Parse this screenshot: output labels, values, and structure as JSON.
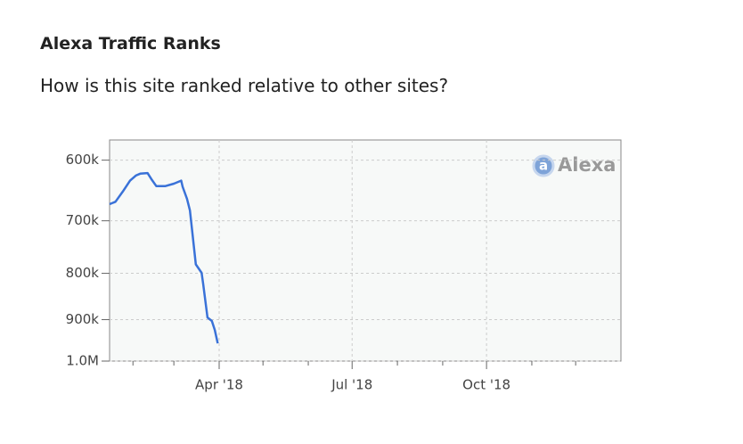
{
  "header": {
    "title": "Alexa Traffic Ranks",
    "subtitle": "How is this site ranked relative to other sites?"
  },
  "chart_data": {
    "type": "line",
    "watermark_icon": "a",
    "watermark": "Alexa",
    "x": [
      "2018-01-16",
      "2018-01-20",
      "2018-01-25",
      "2018-01-30",
      "2018-02-03",
      "2018-02-06",
      "2018-02-11",
      "2018-02-14",
      "2018-02-17",
      "2018-02-23",
      "2018-03-01",
      "2018-03-06",
      "2018-03-07",
      "2018-03-10",
      "2018-03-12",
      "2018-03-14",
      "2018-03-16",
      "2018-03-20",
      "2018-03-21",
      "2018-03-24",
      "2018-03-27",
      "2018-03-29",
      "2018-03-31"
    ],
    "values": [
      671000,
      667000,
      650000,
      632000,
      624000,
      621000,
      620000,
      631000,
      641000,
      641000,
      637000,
      632000,
      642000,
      662000,
      682000,
      730000,
      782000,
      799000,
      821000,
      895000,
      903000,
      924000,
      956000
    ],
    "color": "#3a72d8",
    "xlim": [
      "2018-01-16",
      "2019-01-01"
    ],
    "xticks": [
      {
        "value": "2018-04-01",
        "label": "Apr '18"
      },
      {
        "value": "2018-07-01",
        "label": "Jul '18"
      },
      {
        "value": "2018-10-01",
        "label": "Oct '18"
      }
    ],
    "xminorticks": [
      "2018-02-01",
      "2018-03-01",
      "2018-05-01",
      "2018-06-01",
      "2018-08-01",
      "2018-09-01",
      "2018-11-01",
      "2018-12-01"
    ],
    "ylim": [
      1000000,
      570000
    ],
    "yticks": [
      {
        "value": 600000,
        "label": "600k"
      },
      {
        "value": 700000,
        "label": "700k"
      },
      {
        "value": 800000,
        "label": "800k"
      },
      {
        "value": 900000,
        "label": "900k"
      },
      {
        "value": 1000000,
        "label": "1.0M"
      }
    ],
    "log_scale": true,
    "grid": true
  }
}
